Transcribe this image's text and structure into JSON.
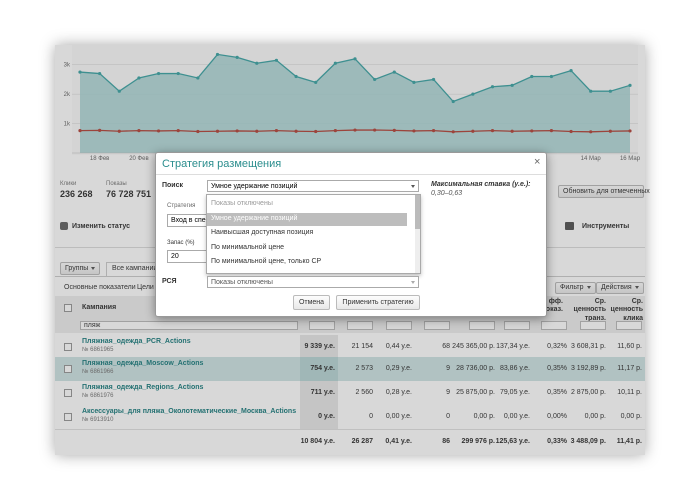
{
  "chart": {
    "type": "line",
    "categories": [
      null,
      "18 Фев",
      null,
      "20 Фев",
      null,
      null,
      null,
      null,
      null,
      null,
      null,
      null,
      null,
      null,
      null,
      null,
      null,
      null,
      null,
      null,
      null,
      null,
      null,
      null,
      null,
      null,
      "14 Мар",
      null,
      "16 Мар"
    ],
    "series": [
      {
        "color": "#3fa5a6",
        "values": [
          2750,
          2700,
          2100,
          2550,
          2700,
          2700,
          2550,
          3350,
          3250,
          3050,
          3150,
          2600,
          2400,
          3050,
          3200,
          2500,
          2750,
          2400,
          2500,
          1750,
          2000,
          2250,
          2300,
          2600,
          2600,
          2800,
          2100,
          2100,
          2300
        ]
      },
      {
        "color": "#b5473c",
        "values": [
          760,
          770,
          740,
          760,
          750,
          760,
          730,
          740,
          750,
          740,
          760,
          740,
          730,
          760,
          780,
          780,
          770,
          750,
          760,
          720,
          740,
          760,
          740,
          750,
          760,
          730,
          720,
          740,
          750
        ]
      }
    ],
    "ylim": [
      0,
      3500
    ],
    "yticks": [
      {
        "value": 1000,
        "label": "1k"
      },
      {
        "value": 2000,
        "label": "2k"
      },
      {
        "value": 3000,
        "label": "3k"
      }
    ]
  },
  "stats": [
    {
      "label": "Клики",
      "value": "236 268"
    },
    {
      "label": "Показы",
      "value": "76 728 751"
    }
  ],
  "toolbar": {
    "change_status": "Изменить статус",
    "update": "Обновить для отмеченных",
    "tools": "Инструменты"
  },
  "tabs": [
    "Группы",
    "Все кампании"
  ],
  "subtabs": [
    "Основные показатели",
    "Цели"
  ],
  "filter": "Фильтр",
  "actions": "Действия",
  "table": {
    "headers": [
      "Кампания",
      "фф. показ.",
      "Ср. ценность транз.",
      "Ср. ценность клика"
    ],
    "search": "пляж",
    "rows": [
      {
        "name": "Пляжная_одежда_PCR_Actions",
        "id": "№ 6861965",
        "cells": [
          "9 339 у.е.",
          "21 154",
          "0,44 у.е.",
          "68",
          "245 365,00 р.",
          "137,34 у.е.",
          "0,32%",
          "3 608,31 р.",
          "11,60 р."
        ]
      },
      {
        "name": "Пляжная_одежда_Moscow_Actions",
        "id": "№ 6861966",
        "cells": [
          "754 у.е.",
          "2 573",
          "0,29 у.е.",
          "9",
          "28 736,00 р.",
          "83,86 у.е.",
          "0,35%",
          "3 192,89 р.",
          "11,17 р."
        ]
      },
      {
        "name": "Пляжная_одежда_Regions_Actions",
        "id": "№ 6861976",
        "cells": [
          "711 у.е.",
          "2 560",
          "0,28 у.е.",
          "9",
          "25 875,00 р.",
          "79,05 у.е.",
          "0,35%",
          "2 875,00 р.",
          "10,11 р."
        ]
      },
      {
        "name": "Аксессуары_для пляжа_Околотематические_Москва_Actions",
        "id": "№ 6913910",
        "cells": [
          "0 у.е.",
          "0",
          "0,00 у.е.",
          "0",
          "0,00 р.",
          "0,00 у.е.",
          "0,00%",
          "0,00 р.",
          "0,00 р."
        ]
      }
    ],
    "total": [
      "10 804 у.е.",
      "26 287",
      "0,41 у.е.",
      "86",
      "299 976 р.",
      "125,63 у.е.",
      "0,33%",
      "3 488,09 р.",
      "11,41 р."
    ]
  },
  "modal": {
    "title": "Стратегия размещения",
    "close": "×",
    "search_label": "Поиск",
    "search_value": "Умное удержание позиций",
    "max_bid_label": "Максимальная ставка (у.е.):",
    "max_bid_value": "0,30–0,63",
    "strategy_label": "Стратегия",
    "strategy_value": "Вход в спе",
    "reserve_label": "Запас (%)",
    "reserve_value": "20",
    "options": [
      "Показы отключены",
      "Умное удержание позиций",
      "Наивысшая доступная позиция",
      "По минимальной цене",
      "По минимальной цене, только СР"
    ],
    "rsya_label": "РСЯ",
    "rsya_value": "Показы отключены",
    "cancel": "Отмена",
    "apply": "Применить стратегию"
  }
}
